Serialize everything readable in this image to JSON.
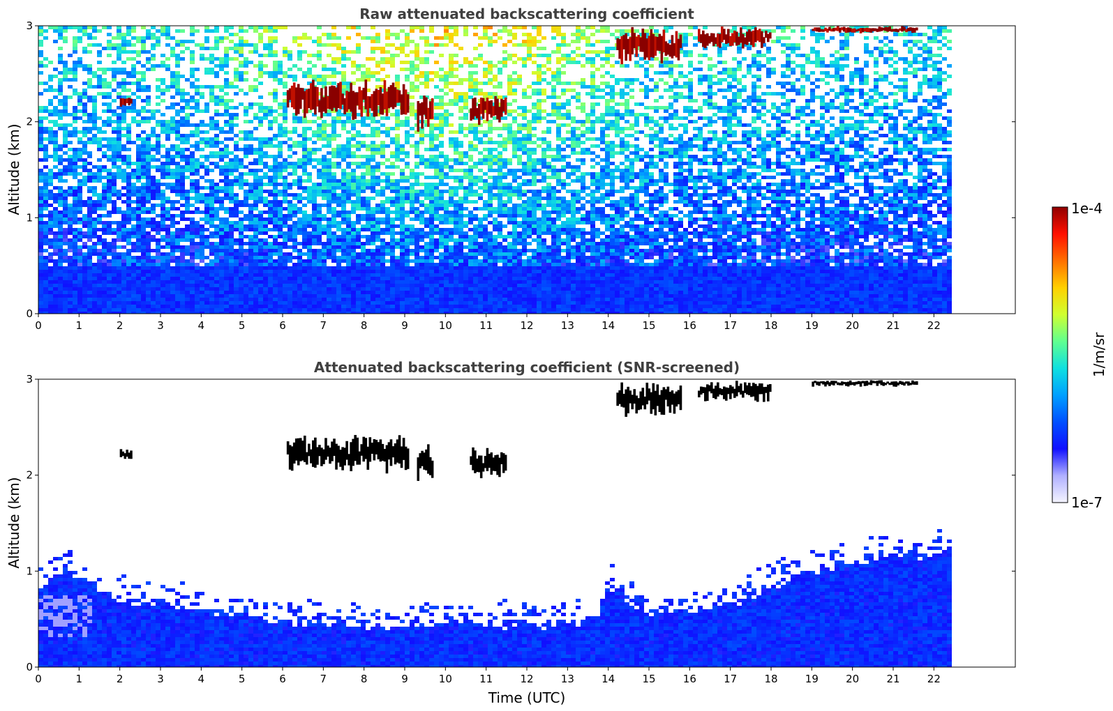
{
  "chart_data": [
    {
      "type": "heatmap",
      "title": "Raw attenuated backscattering coefficient",
      "xlabel": "",
      "ylabel": "Altitude (km)",
      "xlim": [
        0,
        24
      ],
      "ylim": [
        0,
        3
      ],
      "data_x_extent": [
        0,
        22.4
      ],
      "x_ticks": [
        "0",
        "1",
        "2",
        "3",
        "4",
        "5",
        "6",
        "7",
        "8",
        "9",
        "10",
        "11",
        "12",
        "13",
        "14",
        "15",
        "16",
        "17",
        "18",
        "19",
        "20",
        "21",
        "22"
      ],
      "y_ticks": [
        "0",
        "1",
        "2",
        "3"
      ],
      "features": [
        {
          "kind": "boundary_layer",
          "t0": 0,
          "t1": 22.4,
          "z0": 0,
          "z1": 0.5
        },
        {
          "kind": "cloud",
          "t0": 2.0,
          "t1": 2.3,
          "z0": 2.15,
          "z1": 2.28
        },
        {
          "kind": "cloud",
          "t0": 6.1,
          "t1": 9.1,
          "z0": 2.0,
          "z1": 2.45
        },
        {
          "kind": "cloud",
          "t0": 9.3,
          "t1": 9.7,
          "z0": 1.85,
          "z1": 2.35
        },
        {
          "kind": "cloud",
          "t0": 10.6,
          "t1": 11.5,
          "z0": 1.95,
          "z1": 2.3
        },
        {
          "kind": "cloud",
          "t0": 14.2,
          "t1": 15.8,
          "z0": 2.58,
          "z1": 3.0
        },
        {
          "kind": "cloud",
          "t0": 16.2,
          "t1": 18.0,
          "z0": 2.75,
          "z1": 3.0
        },
        {
          "kind": "cloud",
          "t0": 19.0,
          "t1": 21.6,
          "z0": 2.92,
          "z1": 3.0
        }
      ]
    },
    {
      "type": "heatmap",
      "title": "Attenuated backscattering coefficient (SNR-screened)",
      "xlabel": "Time (UTC)",
      "ylabel": "Altitude (km)",
      "xlim": [
        0,
        24
      ],
      "ylim": [
        0,
        3
      ],
      "data_x_extent": [
        0,
        22.4
      ],
      "x_ticks": [
        "0",
        "1",
        "2",
        "3",
        "4",
        "5",
        "6",
        "7",
        "8",
        "9",
        "10",
        "11",
        "12",
        "13",
        "14",
        "15",
        "16",
        "17",
        "18",
        "19",
        "20",
        "21",
        "22"
      ],
      "y_ticks": [
        "0",
        "1",
        "2",
        "3"
      ],
      "boundary_layer_top_km": [
        [
          0,
          0.75
        ],
        [
          0.6,
          1.05
        ],
        [
          1,
          0.95
        ],
        [
          1.5,
          0.8
        ],
        [
          2,
          0.72
        ],
        [
          3,
          0.68
        ],
        [
          4,
          0.6
        ],
        [
          5,
          0.55
        ],
        [
          6,
          0.5
        ],
        [
          7,
          0.45
        ],
        [
          8,
          0.43
        ],
        [
          9,
          0.45
        ],
        [
          10,
          0.45
        ],
        [
          11,
          0.45
        ],
        [
          12,
          0.45
        ],
        [
          13,
          0.45
        ],
        [
          13.7,
          0.5
        ],
        [
          14,
          0.85
        ],
        [
          14.5,
          0.7
        ],
        [
          15,
          0.55
        ],
        [
          16,
          0.6
        ],
        [
          17,
          0.65
        ],
        [
          18,
          0.85
        ],
        [
          19,
          1.0
        ],
        [
          20,
          1.1
        ],
        [
          21,
          1.15
        ],
        [
          22.4,
          1.2
        ]
      ],
      "features": [
        {
          "kind": "cloud",
          "t0": 2.0,
          "t1": 2.3,
          "z0": 2.15,
          "z1": 2.28
        },
        {
          "kind": "cloud",
          "t0": 6.1,
          "t1": 9.1,
          "z0": 2.0,
          "z1": 2.45
        },
        {
          "kind": "cloud",
          "t0": 9.3,
          "t1": 9.7,
          "z0": 1.85,
          "z1": 2.35
        },
        {
          "kind": "cloud",
          "t0": 10.6,
          "t1": 11.5,
          "z0": 1.95,
          "z1": 2.3
        },
        {
          "kind": "cloud",
          "t0": 14.2,
          "t1": 15.8,
          "z0": 2.58,
          "z1": 3.0
        },
        {
          "kind": "cloud",
          "t0": 16.2,
          "t1": 18.0,
          "z0": 2.75,
          "z1": 3.0
        },
        {
          "kind": "cloud",
          "t0": 19.0,
          "t1": 21.6,
          "z0": 2.92,
          "z1": 3.0
        }
      ]
    }
  ],
  "colorbar": {
    "label": "1/m/sr",
    "max_label": "1e-4",
    "min_label": "1e-7",
    "scale": "log",
    "colormap": [
      "#f4f4ff",
      "#b0b0ff",
      "#1010ff",
      "#0050ff",
      "#00a0ff",
      "#10e0e0",
      "#60ff90",
      "#d0ff30",
      "#ffd000",
      "#ff7000",
      "#ff1000",
      "#900000"
    ]
  }
}
